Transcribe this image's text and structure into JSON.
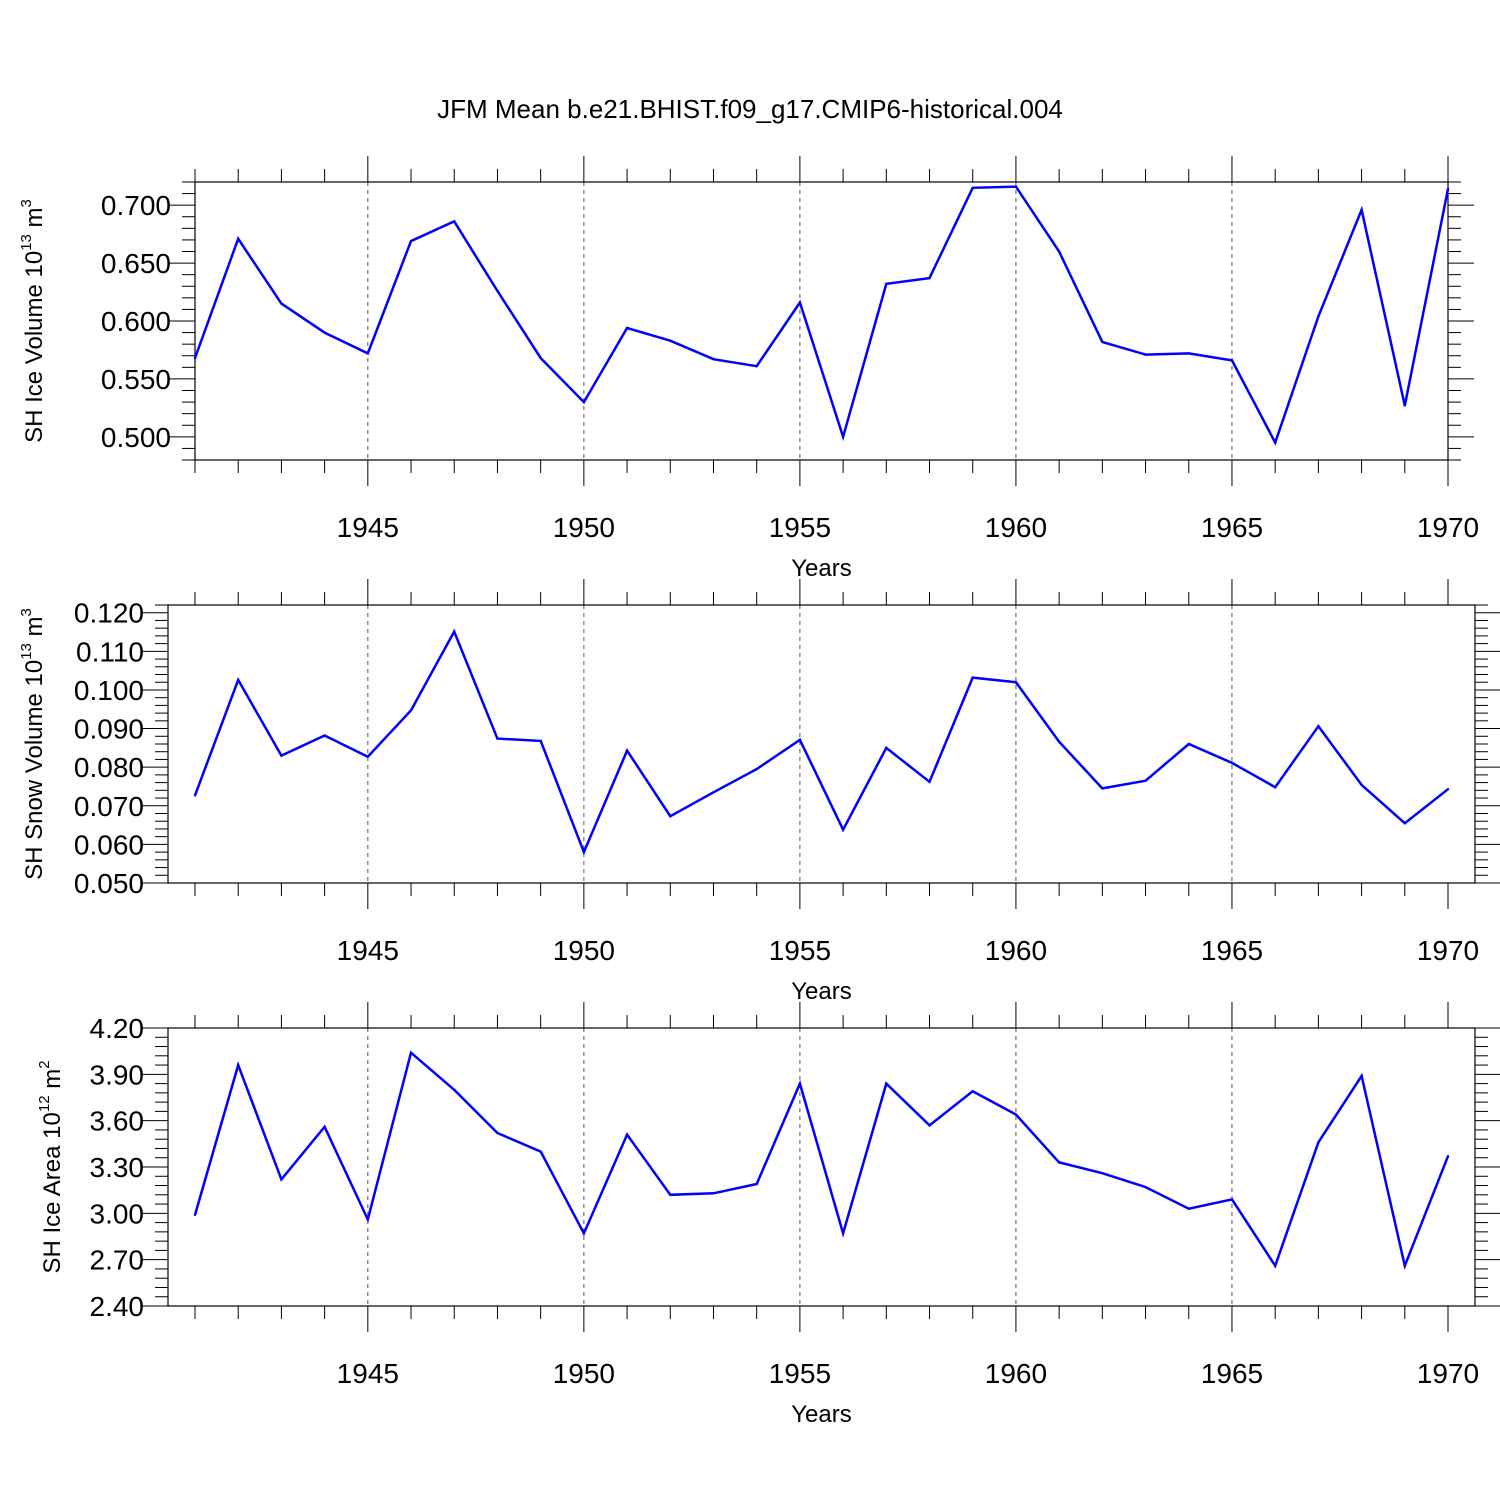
{
  "title": "JFM Mean b.e21.BHIST.f09_g17.CMIP6-historical.004",
  "colors": {
    "line": "#0000ff",
    "axis": "#000000",
    "grid": "#555555"
  },
  "chart_data": [
    {
      "type": "line",
      "ylabel": {
        "main": "SH Ice Volume 10",
        "exp": "13",
        "unit": " m",
        "unit_exp": "3"
      },
      "xlabel": "Years",
      "xlim": [
        1941,
        1970
      ],
      "ylim": [
        0.48,
        0.72
      ],
      "yticks": [
        0.5,
        0.55,
        0.6,
        0.65,
        0.7
      ],
      "ytick_labels": [
        "0.500",
        "0.550",
        "0.600",
        "0.650",
        "0.700"
      ],
      "xticks": [
        1945,
        1950,
        1955,
        1960,
        1965,
        1970
      ],
      "xtick_labels": [
        "1945",
        "1950",
        "1955",
        "1960",
        "1965",
        "1970"
      ],
      "grid": "vertical dashed at major x ticks",
      "x": [
        1941,
        1942,
        1943,
        1944,
        1945,
        1946,
        1947,
        1948,
        1949,
        1950,
        1951,
        1952,
        1953,
        1954,
        1955,
        1956,
        1957,
        1958,
        1959,
        1960,
        1961,
        1962,
        1963,
        1964,
        1965,
        1966,
        1967,
        1968,
        1969,
        1970
      ],
      "values": [
        0.568,
        0.671,
        0.615,
        0.59,
        0.572,
        0.669,
        0.686,
        0.626,
        0.568,
        0.53,
        0.594,
        0.583,
        0.567,
        0.561,
        0.616,
        0.5,
        0.632,
        0.637,
        0.715,
        0.716,
        0.66,
        0.582,
        0.571,
        0.572,
        0.566,
        0.495,
        0.604,
        0.696,
        0.527,
        0.714
      ]
    },
    {
      "type": "line",
      "ylabel": {
        "main": "SH Snow Volume 10",
        "exp": "13",
        "unit": " m",
        "unit_exp": "3"
      },
      "xlabel": "Years",
      "xlim": [
        1941,
        1970
      ],
      "ylim": [
        0.05,
        0.122
      ],
      "yticks": [
        0.05,
        0.06,
        0.07,
        0.08,
        0.09,
        0.1,
        0.11,
        0.12
      ],
      "ytick_labels": [
        "0.050",
        "0.060",
        "0.070",
        "0.080",
        "0.090",
        "0.100",
        "0.110",
        "0.120"
      ],
      "xticks": [
        1945,
        1950,
        1955,
        1960,
        1965,
        1970
      ],
      "xtick_labels": [
        "1945",
        "1950",
        "1955",
        "1960",
        "1965",
        "1970"
      ],
      "grid": "vertical dashed at major x ticks",
      "x": [
        1941,
        1942,
        1943,
        1944,
        1945,
        1946,
        1947,
        1948,
        1949,
        1950,
        1951,
        1952,
        1953,
        1954,
        1955,
        1956,
        1957,
        1958,
        1959,
        1960,
        1961,
        1962,
        1963,
        1964,
        1965,
        1966,
        1967,
        1968,
        1969,
        1970
      ],
      "values": [
        0.0727,
        0.1026,
        0.083,
        0.0882,
        0.0827,
        0.0947,
        0.1151,
        0.0874,
        0.0868,
        0.058,
        0.0843,
        0.0673,
        0.0735,
        0.0795,
        0.0871,
        0.0638,
        0.085,
        0.0762,
        0.1032,
        0.102,
        0.0866,
        0.0745,
        0.0765,
        0.086,
        0.0811,
        0.0748,
        0.0906,
        0.0754,
        0.0655,
        0.0743
      ]
    },
    {
      "type": "line",
      "ylabel": {
        "main": "SH Ice Area 10",
        "exp": "12",
        "unit": " m",
        "unit_exp": "2"
      },
      "xlabel": "Years",
      "xlim": [
        1941,
        1970
      ],
      "ylim": [
        2.4,
        4.2
      ],
      "yticks": [
        2.4,
        2.7,
        3.0,
        3.3,
        3.6,
        3.9,
        4.2
      ],
      "ytick_labels": [
        "2.40",
        "2.70",
        "3.00",
        "3.30",
        "3.60",
        "3.90",
        "4.20"
      ],
      "xticks": [
        1945,
        1950,
        1955,
        1960,
        1965,
        1970
      ],
      "xtick_labels": [
        "1945",
        "1950",
        "1955",
        "1960",
        "1965",
        "1970"
      ],
      "grid": "vertical dashed at major x ticks",
      "x": [
        1941,
        1942,
        1943,
        1944,
        1945,
        1946,
        1947,
        1948,
        1949,
        1950,
        1951,
        1952,
        1953,
        1954,
        1955,
        1956,
        1957,
        1958,
        1959,
        1960,
        1961,
        1962,
        1963,
        1964,
        1965,
        1966,
        1967,
        1968,
        1969,
        1970
      ],
      "values": [
        2.99,
        3.96,
        3.22,
        3.56,
        2.96,
        4.04,
        3.8,
        3.52,
        3.4,
        2.87,
        3.51,
        3.12,
        3.13,
        3.19,
        3.84,
        2.87,
        3.84,
        3.57,
        3.79,
        3.64,
        3.33,
        3.26,
        3.17,
        3.03,
        3.09,
        2.66,
        3.46,
        3.89,
        2.66,
        3.37
      ]
    }
  ]
}
